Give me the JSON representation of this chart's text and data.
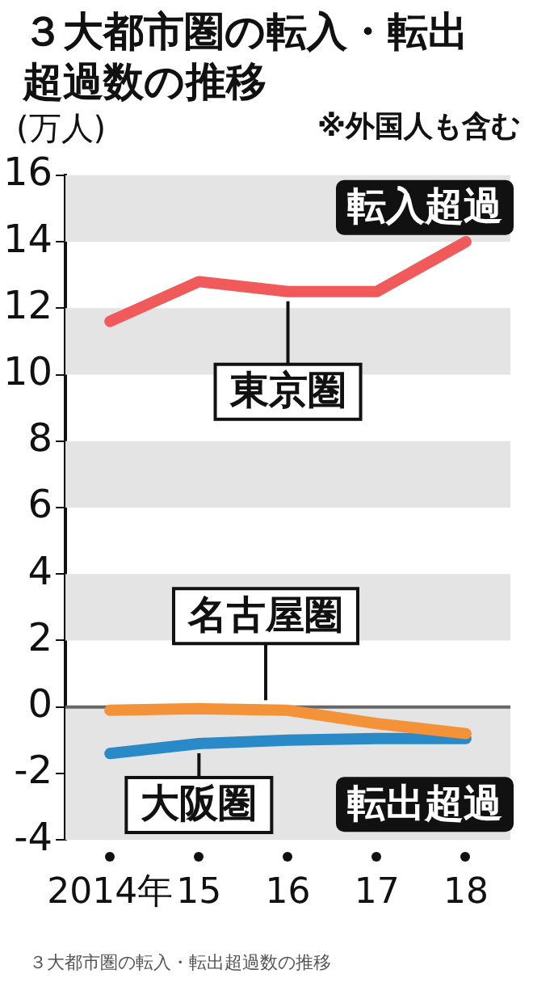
{
  "chart_data": {
    "type": "line",
    "title": "３大都市圏の転入・転出超過数の推移",
    "ylabel": "(万人)",
    "categories": [
      "2014年",
      "15",
      "16",
      "17",
      "18"
    ],
    "series": [
      {
        "name": "東京圏",
        "color": "#f05a5a",
        "values": [
          11.6,
          12.8,
          12.5,
          12.5,
          14.0
        ]
      },
      {
        "name": "名古屋圏",
        "color": "#f4923a",
        "values": [
          -0.1,
          -0.05,
          -0.1,
          -0.5,
          -0.8
        ]
      },
      {
        "name": "大阪圏",
        "color": "#2a8ac8",
        "values": [
          -1.4,
          -1.1,
          -1.0,
          -0.95,
          -0.95
        ]
      }
    ],
    "ylim": [
      -4,
      16
    ],
    "yticks": [
      -4,
      -2,
      0,
      2,
      4,
      6,
      8,
      10,
      12,
      14,
      16
    ],
    "grid": false,
    "legend": false,
    "marker": "none",
    "line_style": "solid",
    "ref_lines": [
      {
        "axis": "y",
        "value": 0,
        "color": "#666666"
      }
    ],
    "bands": [
      {
        "axis": "y",
        "from": 14,
        "to": 16,
        "color": "#e4e4e4"
      },
      {
        "axis": "y",
        "from": 10,
        "to": 12,
        "color": "#e4e4e4"
      },
      {
        "axis": "y",
        "from": 6,
        "to": 8,
        "color": "#e4e4e4"
      },
      {
        "axis": "y",
        "from": 2,
        "to": 4,
        "color": "#e4e4e4"
      },
      {
        "axis": "y",
        "from": -4,
        "to": 0,
        "color": "#e4e4e4"
      }
    ],
    "annotations": [
      "転入超過",
      "転出超過",
      "※外国人も含む",
      "３大都市圏の転入・転出超過数の推移"
    ]
  }
}
